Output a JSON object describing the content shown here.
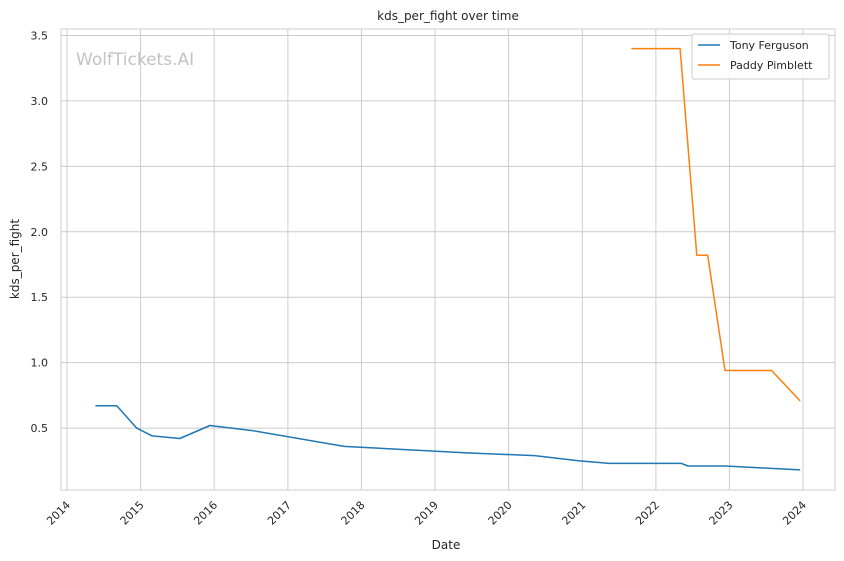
{
  "chart_data": {
    "type": "line",
    "title": "kds_per_fight over time",
    "xlabel": "Date",
    "ylabel": "kds_per_fight",
    "watermark": "WolfTickets.AI",
    "x_tick_labels": [
      "2014",
      "2015",
      "2016",
      "2017",
      "2018",
      "2019",
      "2020",
      "2021",
      "2022",
      "2023",
      "2024"
    ],
    "y_tick_labels": [
      "0.5",
      "1.0",
      "1.5",
      "2.0",
      "2.5",
      "3.0",
      "3.5"
    ],
    "y_ticks": [
      0.5,
      1.0,
      1.5,
      2.0,
      2.5,
      3.0,
      3.5
    ],
    "xlim": [
      "2014-01-01",
      "2024-01-01"
    ],
    "ylim": [
      0.0,
      3.5
    ],
    "grid": true,
    "legend_position": "top-right",
    "series": [
      {
        "name": "Tony Ferguson",
        "color": "#1f77b4",
        "points": [
          {
            "x": "2014-05-24",
            "y": 0.67
          },
          {
            "x": "2014-09-05",
            "y": 0.67
          },
          {
            "x": "2014-12-13",
            "y": 0.5
          },
          {
            "x": "2015-02-28",
            "y": 0.44
          },
          {
            "x": "2015-07-15",
            "y": 0.42
          },
          {
            "x": "2015-12-11",
            "y": 0.52
          },
          {
            "x": "2016-07-13",
            "y": 0.48
          },
          {
            "x": "2017-10-07",
            "y": 0.36
          },
          {
            "x": "2018-10-06",
            "y": 0.33
          },
          {
            "x": "2019-06-08",
            "y": 0.31
          },
          {
            "x": "2020-05-09",
            "y": 0.29
          },
          {
            "x": "2020-12-12",
            "y": 0.25
          },
          {
            "x": "2021-05-15",
            "y": 0.23
          },
          {
            "x": "2022-05-07",
            "y": 0.23
          },
          {
            "x": "2022-06-10",
            "y": 0.21
          },
          {
            "x": "2022-09-10",
            "y": 0.21
          },
          {
            "x": "2022-12-10",
            "y": 0.21
          },
          {
            "x": "2023-12-16",
            "y": 0.18
          }
        ]
      },
      {
        "name": "Paddy Pimblett",
        "color": "#ff7f0e",
        "points": [
          {
            "x": "2021-09-04",
            "y": 3.4
          },
          {
            "x": "2022-03-19",
            "y": 3.4
          },
          {
            "x": "2022-05-01",
            "y": 3.4
          },
          {
            "x": "2022-07-23",
            "y": 1.82
          },
          {
            "x": "2022-09-15",
            "y": 1.82
          },
          {
            "x": "2022-12-10",
            "y": 0.94
          },
          {
            "x": "2023-07-29",
            "y": 0.94
          },
          {
            "x": "2023-12-16",
            "y": 0.71
          }
        ]
      }
    ]
  }
}
